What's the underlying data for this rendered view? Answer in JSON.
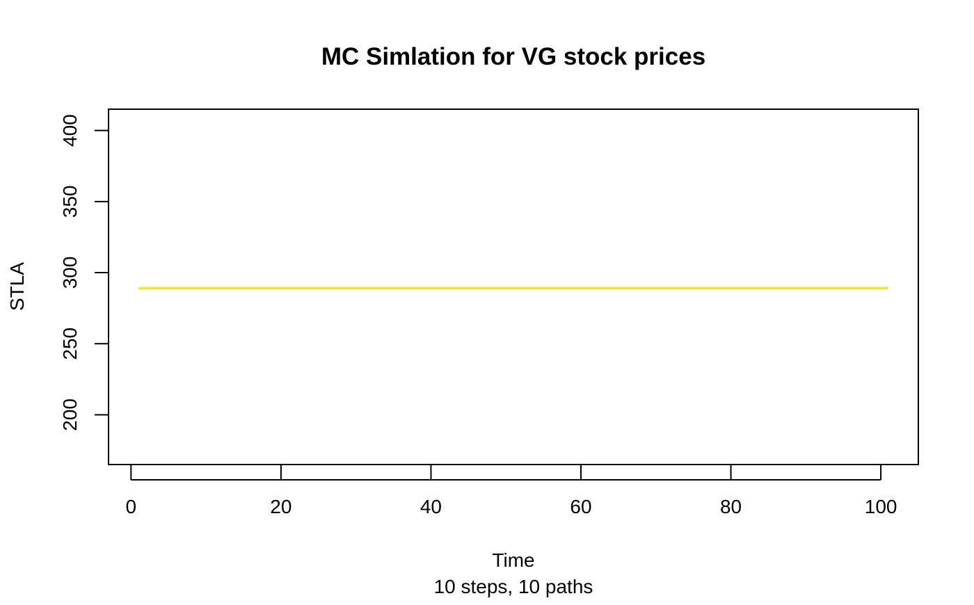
{
  "chart_data": {
    "type": "line",
    "title": "MC Simlation for VG stock prices",
    "xlabel": "Time",
    "subtitle": "10 steps, 10 paths",
    "ylabel": "STLA",
    "xlim": [
      -3,
      105
    ],
    "ylim": [
      165,
      415
    ],
    "x_ticks": [
      0,
      20,
      40,
      60,
      80,
      100
    ],
    "y_ticks": [
      200,
      250,
      300,
      350,
      400
    ],
    "series": [
      {
        "color": "#f0e442",
        "x": [
          1,
          101
        ],
        "y": [
          289,
          289
        ]
      }
    ]
  }
}
